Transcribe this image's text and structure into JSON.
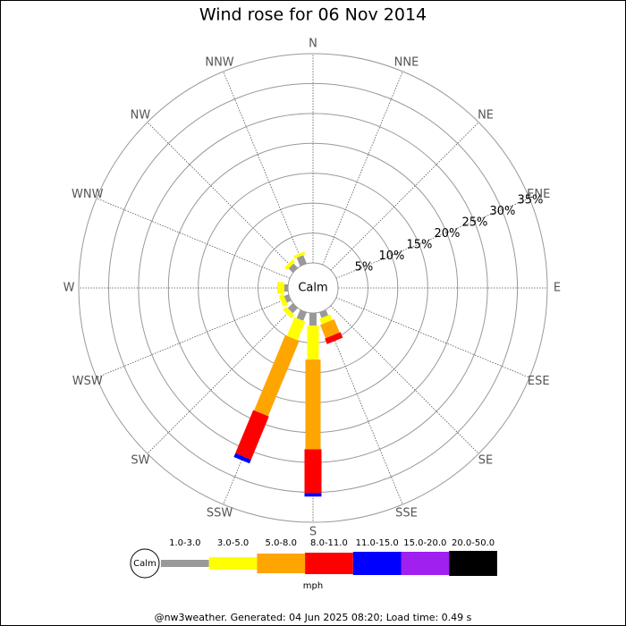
{
  "chart_data": {
    "type": "windrose",
    "title": "Wind rose for 06 Nov 2014",
    "directions": [
      "N",
      "NNE",
      "NE",
      "ENE",
      "E",
      "ESE",
      "SE",
      "SSE",
      "S",
      "SSW",
      "SW",
      "WSW",
      "W",
      "WNW",
      "NW",
      "NNW"
    ],
    "calm_label": "Calm",
    "rlim": [
      0,
      35
    ],
    "rticks": [
      {
        "value": 5,
        "label": "5%"
      },
      {
        "value": 10,
        "label": "10%"
      },
      {
        "value": 15,
        "label": "15%"
      },
      {
        "value": 20,
        "label": "20%"
      },
      {
        "value": 25,
        "label": "25%"
      },
      {
        "value": 30,
        "label": "30%"
      },
      {
        "value": 35,
        "label": "35%"
      }
    ],
    "unit": "mph",
    "series": [
      {
        "name": "1.0-3.0",
        "color": "#999999",
        "values": [
          0,
          0,
          0,
          0,
          0,
          0,
          0,
          1.0,
          2.1,
          1.5,
          1.2,
          0.8,
          0.6,
          0,
          1.0,
          1.5
        ]
      },
      {
        "name": "3.0-5.0",
        "color": "#ffff00",
        "values": [
          0,
          0,
          0,
          0,
          0,
          0,
          0,
          1.0,
          5.7,
          3.4,
          0.8,
          0.8,
          1.2,
          0,
          0.6,
          0.5
        ]
      },
      {
        "name": "5.0-8.0",
        "color": "#ffa500",
        "values": [
          0,
          0,
          0,
          0,
          0,
          0,
          0,
          2.4,
          15.0,
          13.6,
          0,
          0,
          0,
          0,
          0,
          0
        ]
      },
      {
        "name": "8.0-11.0",
        "color": "#ff0000",
        "values": [
          0,
          0,
          0,
          0,
          0,
          0,
          0,
          1.0,
          7.3,
          7.8,
          0,
          0,
          0,
          0,
          0,
          0
        ]
      },
      {
        "name": "11.0-15.0",
        "color": "#0000ff",
        "values": [
          0,
          0,
          0,
          0,
          0,
          0,
          0,
          0,
          0.6,
          0.7,
          0,
          0,
          0,
          0,
          0,
          0
        ]
      },
      {
        "name": "15.0-20.0",
        "color": "#a020f0",
        "values": [
          0,
          0,
          0,
          0,
          0,
          0,
          0,
          0,
          0,
          0,
          0,
          0,
          0,
          0,
          0,
          0
        ]
      },
      {
        "name": "20.0-50.0",
        "color": "#000000",
        "values": [
          0,
          0,
          0,
          0,
          0,
          0,
          0,
          0,
          0,
          0,
          0,
          0,
          0,
          0,
          0,
          0
        ]
      }
    ]
  },
  "footer": "@nw3weather. Generated: 04 Jun 2025 08:20; Load time: 0.49 s"
}
